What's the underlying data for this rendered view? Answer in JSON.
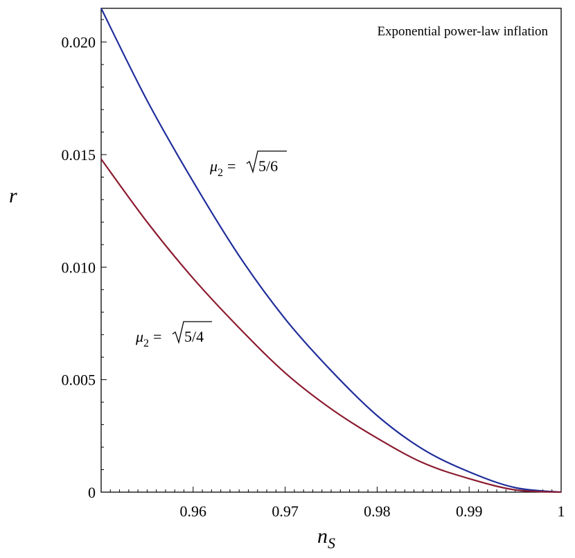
{
  "chart_data": {
    "type": "line",
    "title": "Exponential power-law inflation",
    "xlabel": "n",
    "xlabel_subscript": "S",
    "ylabel": "r",
    "xlim": [
      0.95,
      1.0
    ],
    "ylim": [
      0,
      0.0215
    ],
    "x_ticks": [
      0.96,
      0.97,
      0.98,
      0.99,
      1.0
    ],
    "x_tick_labels": [
      "0.96",
      "0.97",
      "0.98",
      "0.99",
      "1"
    ],
    "y_ticks": [
      0,
      0.005,
      0.01,
      0.015,
      0.02
    ],
    "y_tick_labels": [
      "0",
      "0.005",
      "0.010",
      "0.015",
      "0.020"
    ],
    "grid": false,
    "legend": "none",
    "series": [
      {
        "color": "#1f2d9a",
        "label_text": "μ₂ = √5/6",
        "x": [
          0.95,
          0.955,
          0.96,
          0.965,
          0.97,
          0.975,
          0.98,
          0.985,
          0.99,
          0.995,
          1.0
        ],
        "y": [
          0.0215,
          0.0174,
          0.0138,
          0.0105,
          0.0077,
          0.0054,
          0.0034,
          0.0019,
          0.0009,
          0.0002,
          0.0
        ]
      },
      {
        "color": "#8b1a2e",
        "label_text": "μ₂ = √5/4",
        "x": [
          0.95,
          0.955,
          0.96,
          0.965,
          0.97,
          0.975,
          0.98,
          0.985,
          0.99,
          0.995,
          1.0
        ],
        "y": [
          0.0148,
          0.012,
          0.0095,
          0.0073,
          0.0053,
          0.0037,
          0.0024,
          0.0013,
          0.0006,
          0.0001,
          0.0
        ]
      }
    ],
    "annotations": [
      {
        "text_mu": "μ",
        "text_sub": "2",
        "text_eq": "=",
        "text_rad": "5/6"
      },
      {
        "text_mu": "μ",
        "text_sub": "2",
        "text_eq": "=",
        "text_rad": "5/4"
      }
    ]
  }
}
